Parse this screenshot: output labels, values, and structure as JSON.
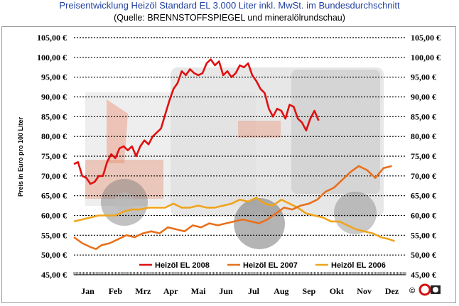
{
  "header": {
    "title": "Preisentwicklung Heizöl Standard EL 3.000 Liter inkl. MwSt. im Bundesdurchschnitt",
    "subtitle": "(Quelle: BRENNSTOFFSPIEGEL und mineralölrundschau)"
  },
  "footer": {
    "copyright": "©"
  },
  "colors": {
    "s2008": "#e01010",
    "s2007": "#e8701c",
    "s2006": "#f0a41c",
    "grid": "#000000"
  },
  "chart_data": {
    "type": "line",
    "title": "Preisentwicklung Heizöl Standard EL 3.000 Liter inkl. MwSt. im Bundesdurchschnitt",
    "subtitle": "(Quelle: BRENNSTOFFSPIEGEL und mineralölrundschau)",
    "ylabel": "Preis in Euro pro 100 Liter",
    "xlabel": "",
    "ylim": [
      45,
      105
    ],
    "yticks": [
      "45,00 €",
      "50,00 €",
      "55,00 €",
      "60,00 €",
      "65,00 €",
      "70,00 €",
      "75,00 €",
      "80,00 €",
      "85,00 €",
      "90,00 €",
      "95,00 €",
      "100,00 €",
      "105,00 €"
    ],
    "months": [
      "Jan",
      "Feb",
      "Mrz",
      "Apr",
      "Mai",
      "Jun",
      "Jul",
      "Aug",
      "Sep",
      "Okt",
      "Nov",
      "Dez"
    ],
    "grid": "horizontal dotted",
    "legend_position": "bottom",
    "series": [
      {
        "name": "Heizöl EL 2008",
        "x": [
          0,
          0.15,
          0.3,
          0.45,
          0.6,
          0.75,
          0.9,
          1.05,
          1.2,
          1.35,
          1.5,
          1.65,
          1.8,
          1.95,
          2.1,
          2.25,
          2.4,
          2.55,
          2.7,
          2.85,
          3,
          3.15,
          3.3,
          3.45,
          3.6,
          3.75,
          3.9,
          4.05,
          4.2,
          4.35,
          4.5,
          4.65,
          4.8,
          4.95,
          5.1,
          5.25,
          5.4,
          5.55,
          5.7,
          5.85,
          6,
          6.15,
          6.3,
          6.45,
          6.6,
          6.75,
          6.9,
          7.05,
          7.2,
          7.35,
          7.5,
          7.65,
          7.8,
          7.95,
          8.1,
          8.25,
          8.4,
          8.55,
          8.7,
          8.85
        ],
        "y": [
          73,
          73.5,
          70,
          69.5,
          68,
          68.5,
          70,
          70,
          73.5,
          75.5,
          74.5,
          77,
          77.5,
          76.5,
          77.5,
          75,
          77.5,
          79,
          78,
          80,
          81,
          82,
          85.5,
          89,
          92,
          93.5,
          96.5,
          95.5,
          97,
          96,
          95.5,
          96,
          98.5,
          99.5,
          98,
          99,
          95.5,
          96.5,
          95,
          96,
          98,
          97.5,
          98.5,
          95.5,
          94,
          92,
          91,
          87,
          85,
          87,
          86.5,
          84.5,
          88,
          87.5,
          84.5,
          83.5,
          81.5,
          84.5,
          86.5,
          84
        ]
      },
      {
        "name": "Heizöl EL 2007",
        "x": [
          0,
          0.3,
          0.6,
          0.8,
          1,
          1.3,
          1.6,
          1.9,
          2.2,
          2.5,
          2.8,
          3.1,
          3.4,
          3.7,
          4,
          4.3,
          4.6,
          4.9,
          5.2,
          5.5,
          5.8,
          6.1,
          6.4,
          6.7,
          7,
          7.3,
          7.6,
          7.9,
          8.2,
          8.5,
          8.8,
          9.1,
          9.4,
          9.7,
          10,
          10.3,
          10.6,
          10.9,
          11.2,
          11.5
        ],
        "y": [
          54.5,
          53,
          52,
          51.5,
          52.5,
          53,
          54,
          55,
          54.5,
          55.5,
          56,
          55.5,
          57,
          56.5,
          56,
          57.5,
          57,
          58,
          57.5,
          58,
          58.5,
          59,
          58.5,
          58,
          59,
          60.5,
          62,
          61.5,
          62.5,
          63,
          64,
          66,
          67,
          69,
          71,
          72.5,
          71.5,
          69.5,
          72,
          72.5
        ]
      },
      {
        "name": "Heizöl EL 2006",
        "x": [
          0,
          0.3,
          0.6,
          0.9,
          1.2,
          1.5,
          1.8,
          2.1,
          2.4,
          2.7,
          3,
          3.3,
          3.6,
          3.9,
          4.2,
          4.5,
          4.8,
          5.1,
          5.4,
          5.7,
          6,
          6.3,
          6.6,
          6.9,
          7.2,
          7.5,
          7.8,
          8.1,
          8.4,
          8.7,
          9,
          9.3,
          9.6,
          9.9,
          10.2,
          10.5,
          10.8,
          11.1,
          11.4,
          11.6
        ],
        "y": [
          58.5,
          59,
          59.5,
          60,
          60,
          60,
          61,
          61.5,
          61.5,
          62,
          62,
          62,
          63,
          62,
          62,
          62.5,
          62,
          62,
          62.5,
          63,
          64,
          63.5,
          64.5,
          63,
          62.5,
          64,
          63,
          62,
          60.5,
          60,
          59.5,
          58.5,
          58.5,
          57.5,
          56.5,
          56,
          55.5,
          54.5,
          54,
          53.5
        ]
      }
    ]
  }
}
